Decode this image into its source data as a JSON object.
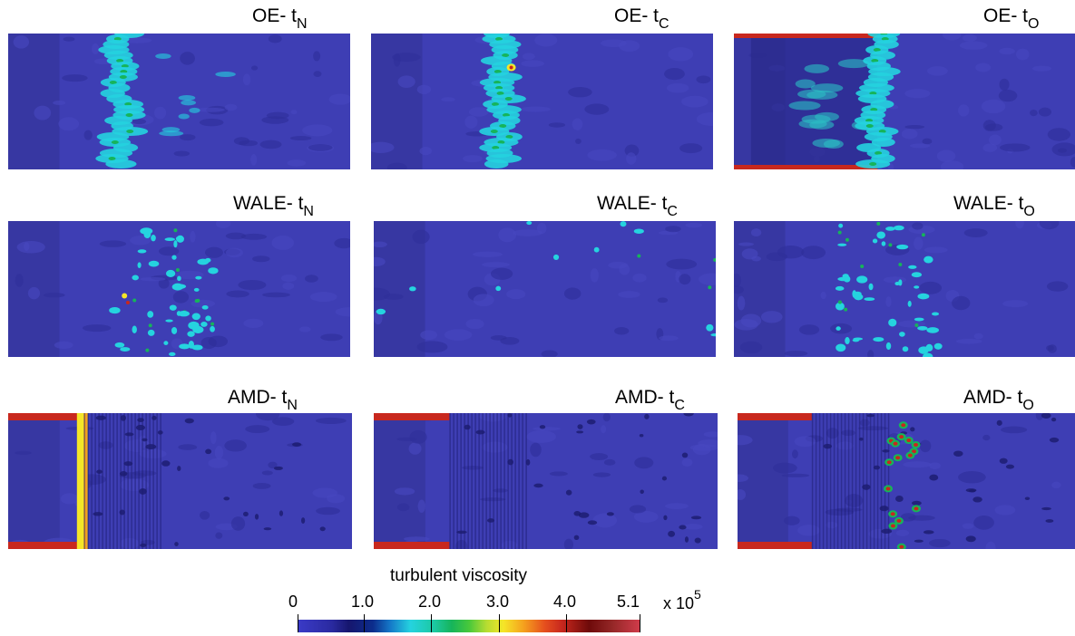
{
  "panels": [
    {
      "id": "oe-tn",
      "method": "OE-",
      "sub": "N",
      "kind": "oe",
      "seed": 11
    },
    {
      "id": "oe-tc",
      "method": "OE-",
      "sub": "C",
      "kind": "oe",
      "seed": 23
    },
    {
      "id": "oe-to",
      "method": "OE-",
      "sub": "O",
      "kind": "oe",
      "seed": 37
    },
    {
      "id": "wale-tn",
      "method": "WALE-",
      "sub": "N",
      "kind": "wale",
      "seed": 41
    },
    {
      "id": "wale-tc",
      "method": "WALE-",
      "sub": "C",
      "kind": "wale",
      "seed": 53
    },
    {
      "id": "wale-to",
      "method": "WALE-",
      "sub": "O",
      "kind": "wale",
      "seed": 67
    },
    {
      "id": "amd-tn",
      "method": "AMD-",
      "sub": "N",
      "kind": "amd",
      "seed": 71
    },
    {
      "id": "amd-tc",
      "method": "AMD-",
      "sub": "C",
      "kind": "amd",
      "seed": 83
    },
    {
      "id": "amd-to",
      "method": "AMD-",
      "sub": "O",
      "kind": "amd",
      "seed": 97
    }
  ],
  "colorbar": {
    "title": "turbulent viscosity",
    "ticks": [
      "0",
      "1.0",
      "2.0",
      "3.0",
      "4.0",
      "5.1"
    ],
    "multiplier_base": "x 10",
    "multiplier_exp": "5",
    "colors": {
      "low": "#3b3bc8",
      "background": "#3e3eb4",
      "dark": "#1c1c6e",
      "cyan": "#25d3df",
      "green": "#16b45a",
      "yellow": "#f5e628",
      "red": "#c8281e"
    }
  }
}
